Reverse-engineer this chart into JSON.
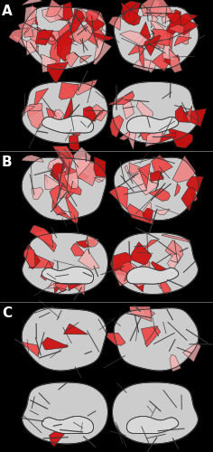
{
  "background_color": "#000000",
  "brain_gray": "#b8b8b8",
  "brain_light_gray": "#cccccc",
  "brain_inner_white": "#d8d8d8",
  "sulci_color": "#383838",
  "parcel_edge": "#2a2a2a",
  "strong_red": "#cc1111",
  "medium_red": "#ee4444",
  "light_pink": "#f08080",
  "very_light_pink": "#f5b0b0",
  "label_color": "#ffffff",
  "label_fontsize": 11,
  "panel_divider_color": "#888888",
  "panels": [
    {
      "label": "A",
      "lat_cov": 0.9,
      "med_cov": 0.62
    },
    {
      "label": "B",
      "lat_cov": 0.55,
      "med_cov": 0.5
    },
    {
      "label": "C",
      "lat_cov": 0.1,
      "med_cov": 0.02
    }
  ],
  "figure_width": 2.36,
  "figure_height": 5.0,
  "dpi": 100
}
